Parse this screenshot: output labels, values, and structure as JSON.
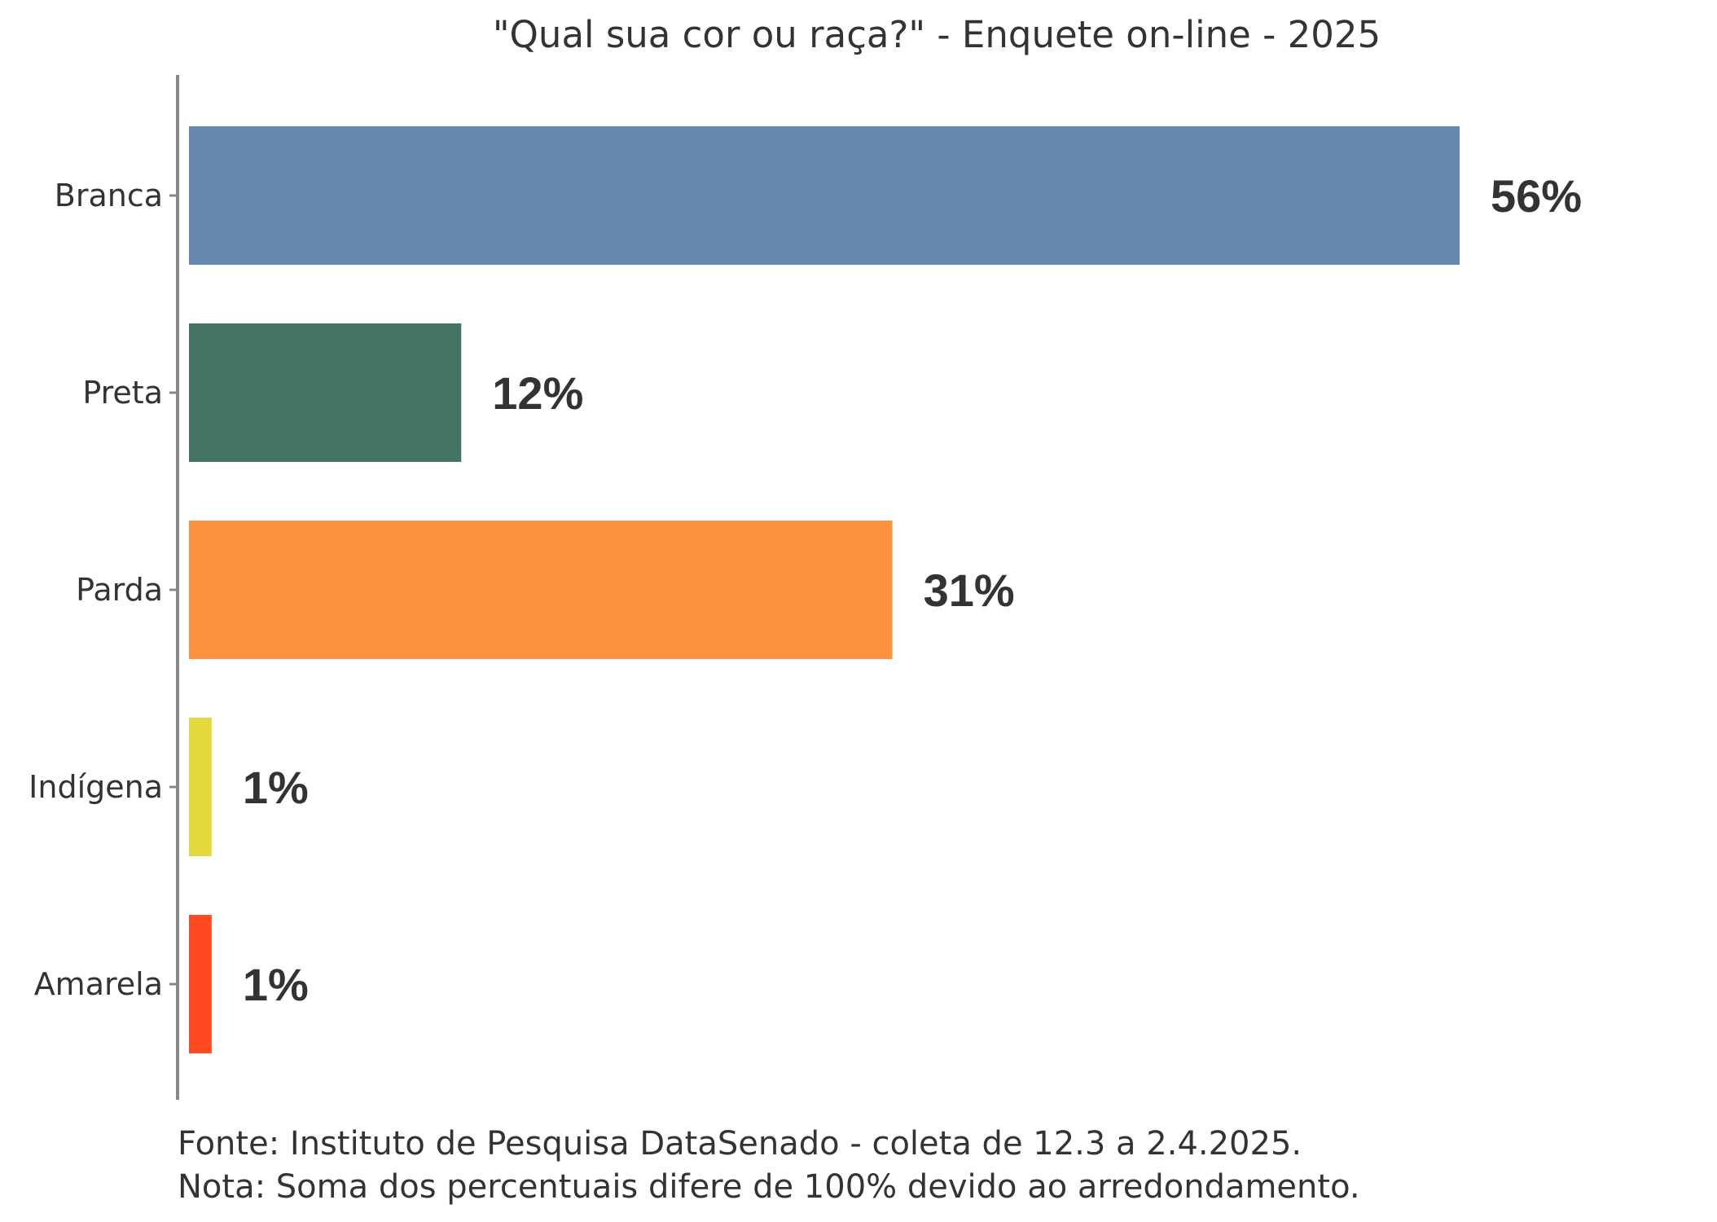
{
  "chart_data": {
    "type": "bar",
    "orientation": "horizontal",
    "title": "\"Qual sua cor ou raça?\" - Enquete on-line - 2025",
    "xlabel": "",
    "ylabel": "",
    "categories": [
      "Branca",
      "Preta",
      "Parda",
      "Indígena",
      "Amarela"
    ],
    "values": [
      56,
      12,
      31,
      1,
      1
    ],
    "value_labels": [
      "56%",
      "12%",
      "31%",
      "1%",
      "1%"
    ],
    "colors": [
      "#6688B0",
      "#457462",
      "#FA923F",
      "#E3D83C",
      "#FF4A22"
    ],
    "xlim": [
      0,
      56
    ],
    "grid": false,
    "legend": "none"
  },
  "notes": {
    "source": "Fonte: Instituto de Pesquisa DataSenado - coleta de 12.3 a 2.4.2025.",
    "note": "Nota: Soma dos percentuais difere de 100% devido ao arredondamento."
  }
}
